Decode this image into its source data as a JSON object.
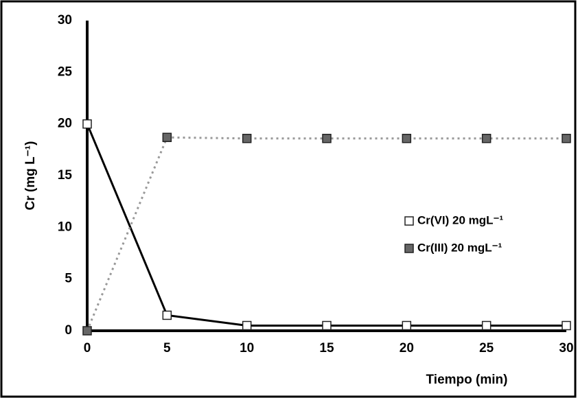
{
  "chart_data": {
    "type": "line",
    "x_label": "Tiempo (min)",
    "y_label": "Cr (mg L⁻¹)",
    "x": [
      0,
      5,
      10,
      15,
      20,
      25,
      30
    ],
    "series": [
      {
        "name": "Cr(VI) 20 mgL⁻¹",
        "color": "#ffffff",
        "line_color": "#000000",
        "line_style": "solid",
        "values": [
          20,
          1.5,
          0.5,
          0.5,
          0.5,
          0.5,
          0.5
        ]
      },
      {
        "name": "Cr(III) 20 mgL⁻¹",
        "color": "#666666",
        "line_color": "#999999",
        "line_style": "dotted",
        "values": [
          0,
          18.7,
          18.6,
          18.6,
          18.6,
          18.6,
          18.6
        ]
      }
    ],
    "xlim": [
      0,
      30
    ],
    "xticks": [
      0,
      5,
      10,
      15,
      20,
      25,
      30
    ],
    "ylim": [
      0,
      30
    ],
    "yticks": [
      0,
      5,
      10,
      15,
      20,
      25,
      30
    ],
    "grid": false,
    "legend": "right"
  }
}
